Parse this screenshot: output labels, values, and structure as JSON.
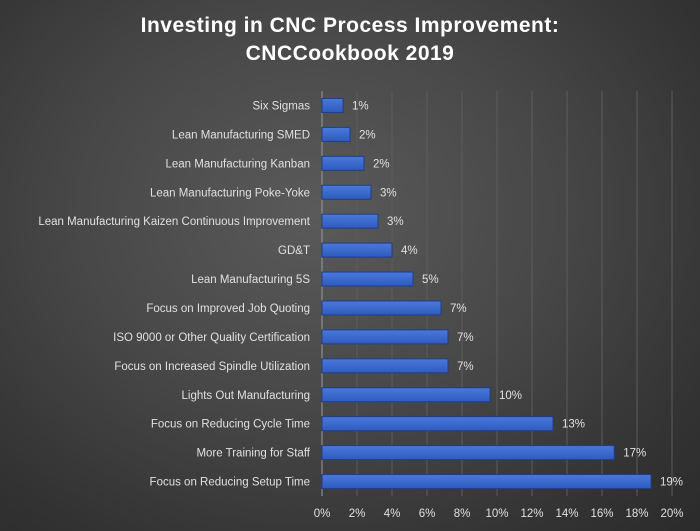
{
  "chart_data": {
    "type": "bar",
    "orientation": "horizontal",
    "title_lines": [
      "Investing in CNC Process Improvement:",
      "CNCCookbook 2019"
    ],
    "categories": [
      "Six Sigmas",
      "Lean Manufacturing SMED",
      "Lean Manufacturing Kanban",
      "Lean Manufacturing Poke-Yoke",
      "Lean Manufacturing Kaizen Continuous Improvement",
      "GD&T",
      "Lean Manufacturing 5S",
      "Focus on Improved Job Quoting",
      "ISO 9000 or Other Quality Certification",
      "Focus on Increased Spindle Utilization",
      "Lights Out Manufacturing",
      "Focus on Reducing Cycle Time",
      "More Training for Staff",
      "Focus on Reducing Setup Time"
    ],
    "values": [
      1.2,
      1.6,
      2.4,
      2.8,
      3.2,
      4.0,
      5.2,
      6.8,
      7.2,
      7.2,
      9.6,
      13.2,
      16.7,
      18.8
    ],
    "data_labels": [
      "1%",
      "2%",
      "2%",
      "3%",
      "3%",
      "4%",
      "5%",
      "7%",
      "7%",
      "7%",
      "10%",
      "13%",
      "17%",
      "19%"
    ],
    "xlim": [
      0,
      20
    ],
    "xticks": [
      "0%",
      "2%",
      "4%",
      "6%",
      "8%",
      "10%",
      "12%",
      "14%",
      "16%",
      "18%",
      "20%"
    ],
    "grid": true,
    "legend": "none",
    "colors": {
      "bar": "#3a68cc",
      "background": "#474747",
      "text": "#e0e0e0",
      "title": "#ffffff"
    }
  }
}
